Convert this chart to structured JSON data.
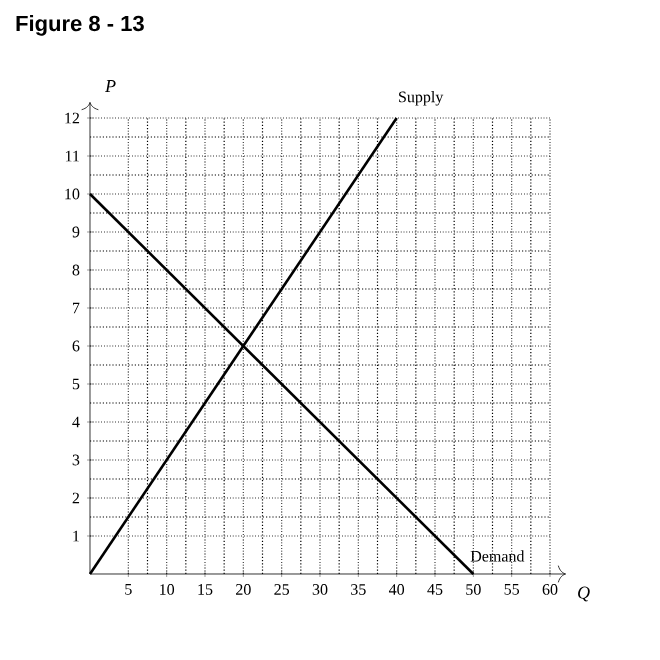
{
  "chart_data": {
    "type": "line",
    "title": "Figure 8 - 13",
    "xlabel": "Q",
    "ylabel": "P",
    "xlim": [
      0,
      60
    ],
    "ylim": [
      0,
      12
    ],
    "xticks": [
      5,
      10,
      15,
      20,
      25,
      30,
      35,
      40,
      45,
      50,
      55,
      60
    ],
    "yticks": [
      1,
      2,
      3,
      4,
      5,
      6,
      7,
      8,
      9,
      10,
      11,
      12
    ],
    "grid": true,
    "legend": false,
    "marker": "none",
    "line_style": "solid",
    "series": [
      {
        "name": "Supply",
        "color": "#000000",
        "x": [
          0,
          40
        ],
        "values": [
          0,
          12
        ]
      },
      {
        "name": "Demand",
        "color": "#000000",
        "x": [
          0,
          50
        ],
        "values": [
          10,
          0
        ]
      }
    ]
  }
}
